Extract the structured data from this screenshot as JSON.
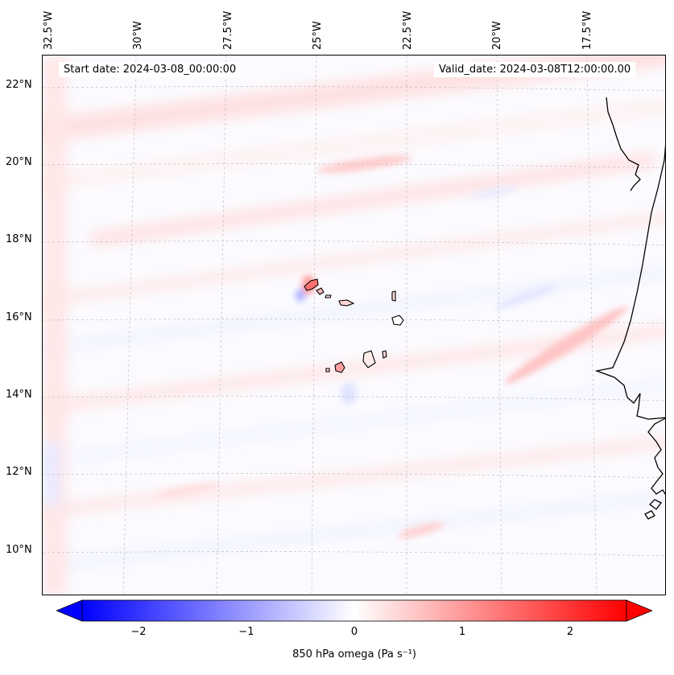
{
  "map": {
    "start_date": "Start date: 2024-03-08_00:00:00",
    "valid_date": "Valid_date: 2024-03-08T12:00:00.00",
    "longitude_labels": [
      "32.5°W",
      "30°W",
      "27.5°W",
      "25°W",
      "22.5°W",
      "20°W",
      "17.5°W"
    ],
    "latitude_labels": [
      "22°N",
      "20°N",
      "18°N",
      "16°N",
      "14°N",
      "12°N",
      "10°N"
    ],
    "features": [
      "Cape Verde islands",
      "West African coastline"
    ],
    "field": "850 hPa omega"
  },
  "colorbar": {
    "label": "850 hPa omega (Pa s⁻¹)",
    "ticks": [
      "−2",
      "−1",
      "0",
      "1",
      "2"
    ],
    "range": [
      -2.5,
      2.5
    ],
    "colormap": "bwr",
    "color_low": "#0000ff",
    "color_mid": "#ffffff",
    "color_high": "#ff0000"
  }
}
